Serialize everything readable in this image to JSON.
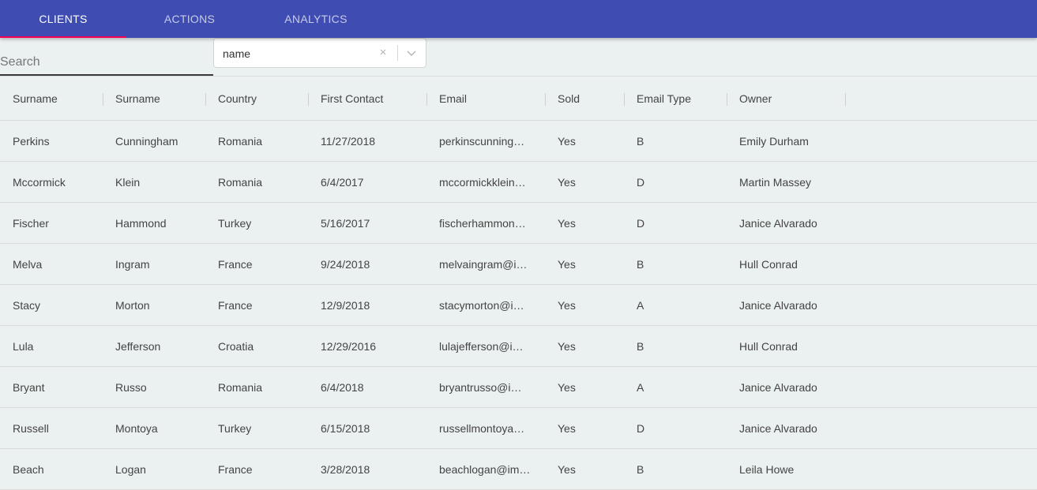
{
  "tabs": [
    {
      "label": "CLIENTS",
      "active": true
    },
    {
      "label": "ACTIONS",
      "active": false
    },
    {
      "label": "ANALYTICS",
      "active": false
    }
  ],
  "filter": {
    "search_placeholder": "Search",
    "select_value": "name",
    "clear_glyph": "×",
    "icons": [
      "clear-icon",
      "chevron-down-icon"
    ]
  },
  "colors": {
    "appbar": "#3f4db3",
    "tab_indicator": "#f50057",
    "background": "#ebf0f0"
  },
  "table": {
    "headers": [
      "Surname",
      "Surname",
      "Country",
      "First Contact",
      "Email",
      "Sold",
      "Email Type",
      "Owner"
    ],
    "rows": [
      [
        "Perkins",
        "Cunningham",
        "Romania",
        "11/27/2018",
        "perkinscunning…",
        "Yes",
        "B",
        "Emily Durham"
      ],
      [
        "Mccormick",
        "Klein",
        "Romania",
        "6/4/2017",
        "mccormickklein…",
        "Yes",
        "D",
        "Martin Massey"
      ],
      [
        "Fischer",
        "Hammond",
        "Turkey",
        "5/16/2017",
        "fischerhammon…",
        "Yes",
        "D",
        "Janice Alvarado"
      ],
      [
        "Melva",
        "Ingram",
        "France",
        "9/24/2018",
        "melvaingram@i…",
        "Yes",
        "B",
        "Hull Conrad"
      ],
      [
        "Stacy",
        "Morton",
        "France",
        "12/9/2018",
        "stacymorton@i…",
        "Yes",
        "A",
        "Janice Alvarado"
      ],
      [
        "Lula",
        "Jefferson",
        "Croatia",
        "12/29/2016",
        "lulajefferson@i…",
        "Yes",
        "B",
        "Hull Conrad"
      ],
      [
        "Bryant",
        "Russo",
        "Romania",
        "6/4/2018",
        "bryantrusso@i…",
        "Yes",
        "A",
        "Janice Alvarado"
      ],
      [
        "Russell",
        "Montoya",
        "Turkey",
        "6/15/2018",
        "russellmontoya…",
        "Yes",
        "D",
        "Janice Alvarado"
      ],
      [
        "Beach",
        "Logan",
        "France",
        "3/28/2018",
        "beachlogan@im…",
        "Yes",
        "B",
        "Leila Howe"
      ]
    ]
  }
}
